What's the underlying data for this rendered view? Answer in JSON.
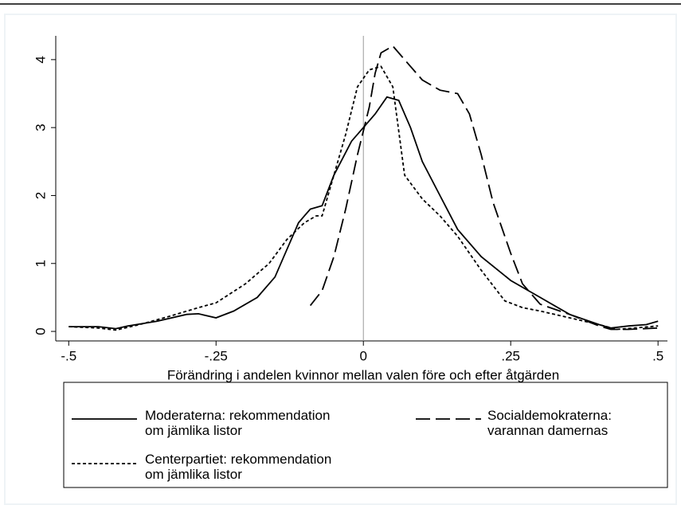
{
  "chart_data": {
    "type": "line",
    "xlabel": "Förändring i andelen kvinnor mellan valen före och efter åtgärden",
    "xlim": [
      -0.522,
      0.516
    ],
    "ylim": [
      -0.14,
      4.35
    ],
    "xticks": [
      {
        "value": -0.5,
        "label": "-.5"
      },
      {
        "value": -0.25,
        "label": "-.25"
      },
      0,
      {
        "value": 0.25,
        "label": ".25"
      },
      {
        "value": 0.5,
        "label": ".5"
      }
    ],
    "yticks": [
      0,
      1,
      2,
      3,
      4
    ],
    "reference_x": 0,
    "series": [
      {
        "name": "Moderaterna: rekommendation\nom jämlika listor",
        "color": "#000000",
        "dash": "solid",
        "x": [
          -0.5,
          -0.45,
          -0.42,
          -0.4,
          -0.35,
          -0.3,
          -0.28,
          -0.25,
          -0.22,
          -0.18,
          -0.15,
          -0.13,
          -0.11,
          -0.09,
          -0.07,
          -0.05,
          -0.02,
          0,
          0.02,
          0.04,
          0.06,
          0.08,
          0.1,
          0.13,
          0.16,
          0.2,
          0.25,
          0.3,
          0.35,
          0.4,
          0.42,
          0.45,
          0.48,
          0.5
        ],
        "values": [
          0.07,
          0.07,
          0.04,
          0.08,
          0.15,
          0.25,
          0.26,
          0.2,
          0.3,
          0.5,
          0.8,
          1.2,
          1.6,
          1.8,
          1.85,
          2.3,
          2.8,
          3.0,
          3.2,
          3.45,
          3.4,
          3.0,
          2.5,
          2.0,
          1.5,
          1.1,
          0.75,
          0.5,
          0.25,
          0.1,
          0.05,
          0.08,
          0.1,
          0.15
        ]
      },
      {
        "name": "Socialdemokraterna:\nvarannan damernas",
        "color": "#000000",
        "dash": "long",
        "x": [
          -0.09,
          -0.07,
          -0.05,
          -0.03,
          -0.01,
          0.01,
          0.02,
          0.03,
          0.05,
          0.07,
          0.1,
          0.13,
          0.16,
          0.18,
          0.2,
          0.22,
          0.25,
          0.27,
          0.3,
          0.35,
          0.4,
          0.42,
          0.45,
          0.5
        ],
        "values": [
          0.38,
          0.6,
          1.1,
          1.8,
          2.6,
          3.3,
          3.8,
          4.1,
          4.2,
          4.0,
          3.7,
          3.55,
          3.5,
          3.2,
          2.6,
          1.9,
          1.15,
          0.7,
          0.4,
          0.25,
          0.08,
          0.03,
          0.03,
          0.05
        ]
      },
      {
        "name": "Centerpartiet: rekommendation\nom jämlika listor",
        "color": "#000000",
        "dash": "short",
        "x": [
          -0.5,
          -0.45,
          -0.42,
          -0.38,
          -0.33,
          -0.28,
          -0.25,
          -0.2,
          -0.16,
          -0.13,
          -0.1,
          -0.08,
          -0.07,
          -0.05,
          -0.03,
          -0.01,
          0.01,
          0.03,
          0.05,
          0.07,
          0.1,
          0.13,
          0.16,
          0.2,
          0.24,
          0.27,
          0.3,
          0.35,
          0.4,
          0.43,
          0.46,
          0.5
        ],
        "values": [
          0.07,
          0.05,
          0.02,
          0.1,
          0.22,
          0.35,
          0.42,
          0.7,
          1.0,
          1.35,
          1.6,
          1.7,
          1.7,
          2.3,
          2.9,
          3.6,
          3.85,
          3.9,
          3.6,
          2.3,
          1.95,
          1.7,
          1.4,
          0.9,
          0.45,
          0.35,
          0.3,
          0.2,
          0.1,
          0.03,
          0.05,
          0.08
        ]
      }
    ]
  }
}
